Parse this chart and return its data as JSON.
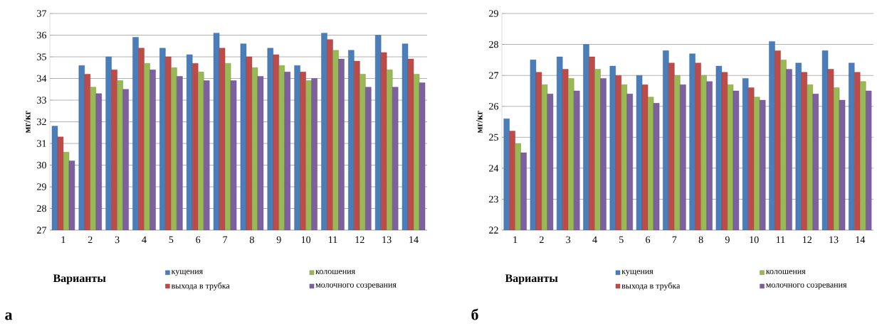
{
  "chart_data": [
    {
      "type": "bar",
      "ylabel": "мг/кг",
      "xlabel": "Варианты",
      "annotations": [
        "а"
      ],
      "categories": [
        "1",
        "2",
        "3",
        "4",
        "5",
        "6",
        "7",
        "8",
        "9",
        "10",
        "11",
        "12",
        "13",
        "14"
      ],
      "ylim": [
        27,
        37
      ],
      "yticks": [
        27,
        28,
        29,
        30,
        31,
        32,
        33,
        34,
        35,
        36,
        37
      ],
      "grid": "y",
      "legend": "bottom",
      "series": [
        {
          "name": "кущения",
          "color": "#4a7ebb",
          "values": [
            31.8,
            34.6,
            35.0,
            35.9,
            35.4,
            35.1,
            36.1,
            35.6,
            35.4,
            34.6,
            36.1,
            35.3,
            36.0,
            35.6
          ]
        },
        {
          "name": "выхода в трубка",
          "color": "#be4b48",
          "values": [
            31.3,
            34.2,
            34.4,
            35.4,
            35.0,
            34.7,
            35.4,
            35.0,
            35.1,
            34.3,
            35.8,
            34.8,
            35.2,
            34.9
          ]
        },
        {
          "name": "колошения",
          "color": "#98b954",
          "values": [
            30.6,
            33.6,
            33.9,
            34.7,
            34.5,
            34.3,
            34.7,
            34.5,
            34.6,
            33.9,
            35.3,
            34.2,
            34.4,
            34.2
          ]
        },
        {
          "name": "молочного созревания",
          "color": "#7d60a0",
          "values": [
            30.2,
            33.3,
            33.5,
            34.4,
            34.1,
            33.9,
            33.9,
            34.1,
            34.3,
            34.0,
            34.9,
            33.6,
            33.6,
            33.8
          ]
        }
      ]
    },
    {
      "type": "bar",
      "ylabel": "мг/кг",
      "xlabel": "Варианты",
      "annotations": [
        "б"
      ],
      "categories": [
        "1",
        "2",
        "3",
        "4",
        "5",
        "6",
        "7",
        "8",
        "9",
        "10",
        "11",
        "12",
        "13",
        "14"
      ],
      "ylim": [
        22,
        29
      ],
      "yticks": [
        22,
        23,
        24,
        25,
        26,
        27,
        28,
        29
      ],
      "grid": "y",
      "legend": "bottom",
      "series": [
        {
          "name": "кущения",
          "color": "#4a7ebb",
          "values": [
            25.6,
            27.5,
            27.6,
            28.0,
            27.3,
            27.0,
            27.8,
            27.7,
            27.3,
            26.9,
            28.1,
            27.4,
            27.8,
            27.4
          ]
        },
        {
          "name": "выхода в трубка",
          "color": "#be4b48",
          "values": [
            25.2,
            27.1,
            27.2,
            27.6,
            27.0,
            26.7,
            27.4,
            27.4,
            27.1,
            26.6,
            27.8,
            27.1,
            27.2,
            27.1
          ]
        },
        {
          "name": "колошения",
          "color": "#98b954",
          "values": [
            24.8,
            26.7,
            26.9,
            27.2,
            26.7,
            26.3,
            27.0,
            27.0,
            26.7,
            26.3,
            27.5,
            26.7,
            26.6,
            26.8
          ]
        },
        {
          "name": "молочного созревания",
          "color": "#7d60a0",
          "values": [
            24.5,
            26.4,
            26.5,
            26.9,
            26.4,
            26.1,
            26.7,
            26.8,
            26.5,
            26.2,
            27.2,
            26.4,
            26.2,
            26.5
          ]
        }
      ]
    }
  ]
}
